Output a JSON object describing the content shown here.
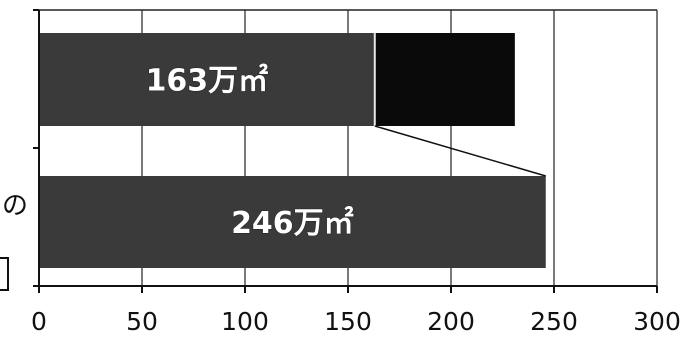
{
  "chart_data": {
    "type": "bar",
    "orientation": "horizontal",
    "stacked": true,
    "categories": [
      "",
      ""
    ],
    "series": [
      {
        "values": [
          163,
          246
        ],
        "color": "#3a3a3a"
      },
      {
        "values": [
          68,
          0
        ],
        "color": "#0a0a0a"
      }
    ],
    "data_labels": [
      "163万㎡",
      "246万㎡"
    ],
    "xlim": [
      0,
      300
    ],
    "xticks": [
      0,
      50,
      100,
      150,
      200,
      250,
      300
    ],
    "grid": true,
    "title": "",
    "xlabel": "",
    "ylabel": ""
  },
  "margin_text": "の",
  "colors": {
    "gridline": "#222222",
    "axis": "#111111",
    "background": "#ffffff"
  }
}
